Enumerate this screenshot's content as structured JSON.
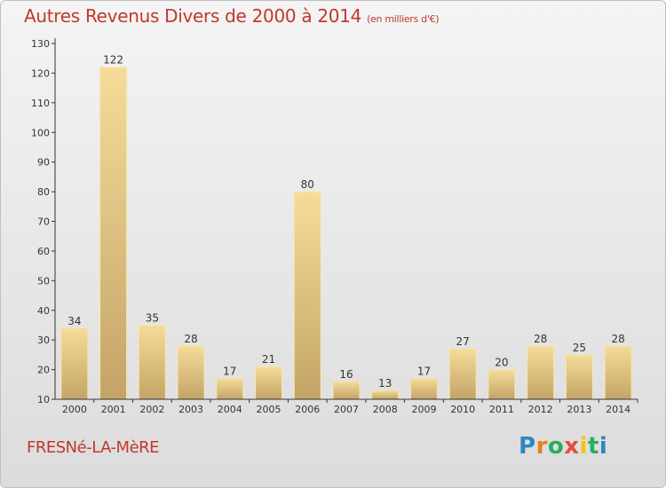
{
  "header": {
    "title": "Autres Revenus Divers de 2000 à 2014",
    "subtitle": "(en milliers d'€)"
  },
  "footer": {
    "commune": "FRESNé-LA-MèRE",
    "logo_letters": [
      {
        "char": "P",
        "color": "#2e86c1"
      },
      {
        "char": "r",
        "color": "#e67e22"
      },
      {
        "char": "o",
        "color": "#27ae60"
      },
      {
        "char": "x",
        "color": "#e74c3c"
      },
      {
        "char": "i",
        "color": "#f1c40f"
      },
      {
        "char": "t",
        "color": "#27ae60"
      },
      {
        "char": "i",
        "color": "#2e86c1"
      }
    ]
  },
  "chart_data": {
    "type": "bar",
    "categories": [
      "2000",
      "2001",
      "2002",
      "2003",
      "2004",
      "2005",
      "2006",
      "2007",
      "2008",
      "2009",
      "2010",
      "2011",
      "2012",
      "2013",
      "2014"
    ],
    "values": [
      34,
      122,
      35,
      28,
      17,
      21,
      80,
      16,
      13,
      17,
      27,
      20,
      28,
      25,
      28
    ],
    "title": "Autres Revenus Divers de 2000 à 2014",
    "xlabel": "",
    "ylabel": "",
    "ylim": [
      10,
      130
    ],
    "yticks": [
      10,
      20,
      30,
      40,
      50,
      60,
      70,
      80,
      90,
      100,
      110,
      120,
      130
    ],
    "grid": false,
    "bar_color_top": "#f5dc99",
    "bar_color_bottom": "#c4a466",
    "axis_color": "#333333"
  }
}
